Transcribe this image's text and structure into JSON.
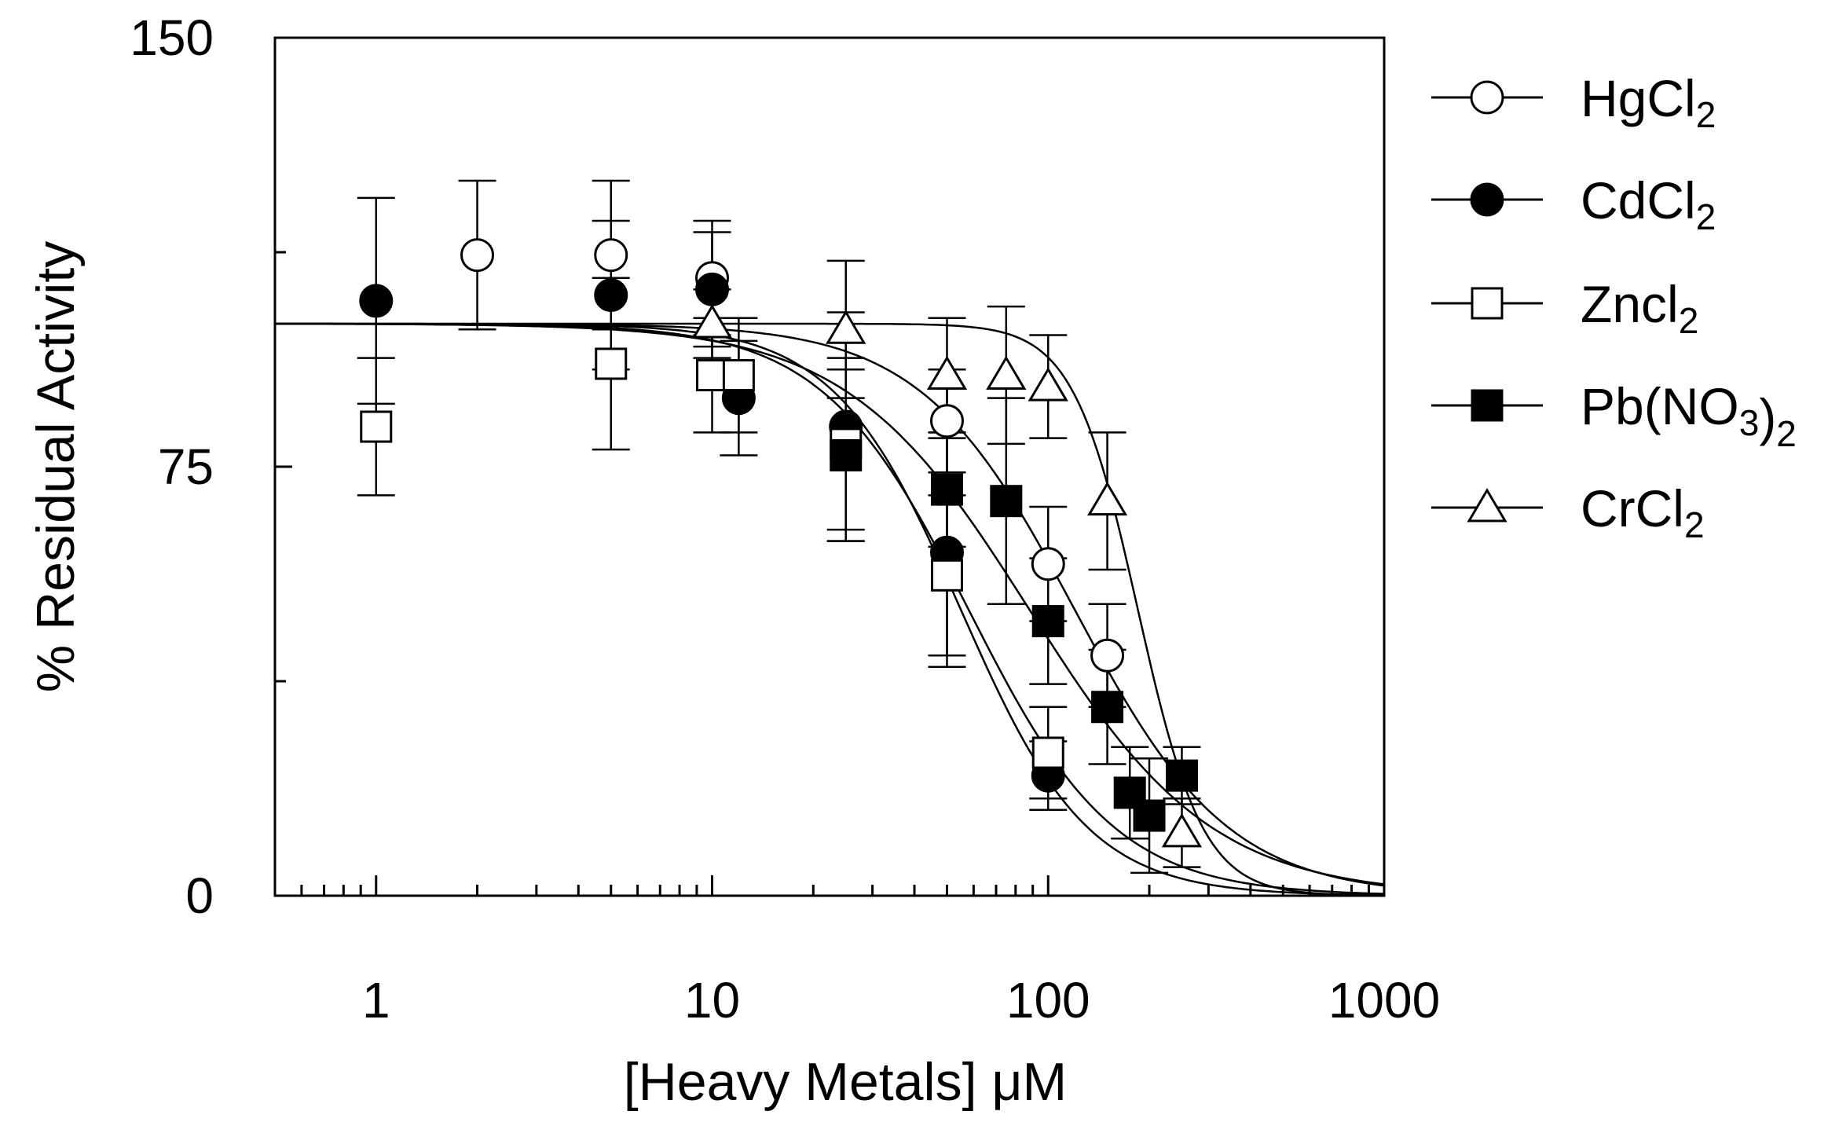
{
  "chart_data": {
    "type": "scatter",
    "title": "",
    "xlabel": "[Heavy Metals] μM",
    "ylabel": "% Residual Activity",
    "xscale": "log",
    "xlim": [
      0.5,
      1000
    ],
    "ylim": [
      0,
      150
    ],
    "x_ticks": [
      1,
      10,
      100,
      1000
    ],
    "x_tick_labels": [
      "1",
      "10",
      "100",
      "1000"
    ],
    "y_ticks": [
      0,
      75,
      150
    ],
    "y_tick_labels": [
      "0",
      "75",
      "150"
    ],
    "y_minor_ticks": [
      37.5,
      112.5
    ],
    "grid": false,
    "legend_position": "right",
    "series": [
      {
        "name": "HgCl2",
        "label_base": "HgCl",
        "label_sub": "2",
        "label_tail": "",
        "label_tail_sub": "",
        "label_tail2": "",
        "marker": "circle",
        "filled": false,
        "fit": {
          "top": 100,
          "ic50": 120,
          "hill": 1.9
        },
        "points": [
          {
            "x": 2,
            "y": 112,
            "err": 13
          },
          {
            "x": 5,
            "y": 112,
            "err": 13
          },
          {
            "x": 10,
            "y": 108,
            "err": 10
          },
          {
            "x": 50,
            "y": 83,
            "err": 9
          },
          {
            "x": 100,
            "y": 58,
            "err": 10
          },
          {
            "x": 150,
            "y": 42,
            "err": 9
          }
        ]
      },
      {
        "name": "CdCl2",
        "label_base": "CdCl",
        "label_sub": "2",
        "label_tail": "",
        "label_tail_sub": "",
        "label_tail2": "",
        "marker": "circle",
        "filled": true,
        "fit": {
          "top": 100,
          "ic50": 55,
          "hill": 2.3
        },
        "points": [
          {
            "x": 1,
            "y": 104,
            "err": 18
          },
          {
            "x": 5,
            "y": 105,
            "err": 13
          },
          {
            "x": 10,
            "y": 106,
            "err": 10
          },
          {
            "x": 12,
            "y": 87,
            "err": 10
          },
          {
            "x": 25,
            "y": 82,
            "err": 20
          },
          {
            "x": 50,
            "y": 60,
            "err": 20
          },
          {
            "x": 100,
            "y": 21,
            "err": 6
          }
        ]
      },
      {
        "name": "Zncl2",
        "label_base": "Zncl",
        "label_sub": "2",
        "label_tail": "",
        "label_tail_sub": "",
        "label_tail2": "",
        "marker": "square",
        "filled": false,
        "fit": {
          "top": 100,
          "ic50": 58,
          "hill": 2.0
        },
        "points": [
          {
            "x": 1,
            "y": 82,
            "err": 12
          },
          {
            "x": 5,
            "y": 93,
            "err": 15
          },
          {
            "x": 10,
            "y": 91,
            "err": 10
          },
          {
            "x": 12,
            "y": 91,
            "err": 10
          },
          {
            "x": 25,
            "y": 79,
            "err": 15
          },
          {
            "x": 50,
            "y": 56,
            "err": 14
          },
          {
            "x": 100,
            "y": 25,
            "err": 8
          }
        ]
      },
      {
        "name": "Pb(NO3)2",
        "label_base": "Pb(NO",
        "label_sub": "3",
        "label_tail": ")",
        "label_tail_sub": "2",
        "label_tail2": "",
        "marker": "square",
        "filled": true,
        "fit": {
          "top": 100,
          "ic50": 88,
          "hill": 1.6
        },
        "points": [
          {
            "x": 25,
            "y": 77,
            "err": 15
          },
          {
            "x": 50,
            "y": 71,
            "err": 10
          },
          {
            "x": 75,
            "y": 69,
            "err": 18
          },
          {
            "x": 100,
            "y": 48,
            "err": 11
          },
          {
            "x": 150,
            "y": 33,
            "err": 10
          },
          {
            "x": 175,
            "y": 18,
            "err": 8
          },
          {
            "x": 200,
            "y": 14,
            "err": 10
          },
          {
            "x": 250,
            "y": 21,
            "err": 5
          }
        ]
      },
      {
        "name": "CrCl2",
        "label_base": "CrCl",
        "label_sub": "2",
        "label_tail": "",
        "label_tail_sub": "",
        "label_tail2": "",
        "marker": "triangle",
        "filled": false,
        "fit": {
          "top": 100,
          "ic50": 185,
          "hill": 4.5
        },
        "points": [
          {
            "x": 10,
            "y": 100,
            "err": 6
          },
          {
            "x": 25,
            "y": 99,
            "err": 12
          },
          {
            "x": 50,
            "y": 91,
            "err": 10
          },
          {
            "x": 75,
            "y": 91,
            "err": 12
          },
          {
            "x": 100,
            "y": 89,
            "err": 9
          },
          {
            "x": 150,
            "y": 69,
            "err": 12
          },
          {
            "x": 250,
            "y": 11,
            "err": 6
          }
        ]
      }
    ]
  }
}
